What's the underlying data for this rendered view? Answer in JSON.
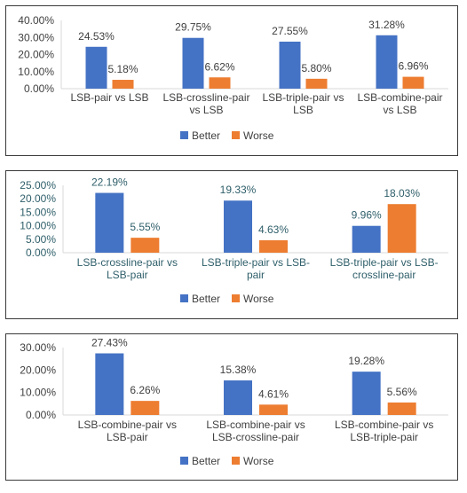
{
  "colors": {
    "better": "#4472C4",
    "worse": "#ED7D31",
    "axis": "#D9D9D9",
    "teal_text": "#2F5F6A",
    "dark_text": "#404040"
  },
  "chart_data": [
    {
      "type": "bar",
      "title": "",
      "categories": [
        [
          "LSB-pair vs LSB"
        ],
        [
          "LSB-crossline-pair",
          "vs LSB"
        ],
        [
          "LSB-triple-pair vs",
          "LSB"
        ],
        [
          "LSB-combine-pair",
          "vs LSB"
        ]
      ],
      "series": [
        {
          "name": "Better",
          "values": [
            24.53,
            29.75,
            27.55,
            31.28
          ],
          "labels": [
            "24.53%",
            "29.75%",
            "27.55%",
            "31.28%"
          ]
        },
        {
          "name": "Worse",
          "values": [
            5.18,
            6.62,
            5.8,
            6.96
          ],
          "labels": [
            "5.18%",
            "6.62%",
            "5.80%",
            "6.96%"
          ]
        }
      ],
      "ylim": [
        0,
        40
      ],
      "yticks": [
        "0.00%",
        "10.00%",
        "20.00%",
        "30.00%",
        "40.00%"
      ],
      "grid": false,
      "legend": "bottom",
      "xlabel": "",
      "ylabel": ""
    },
    {
      "type": "bar",
      "title": "",
      "categories": [
        [
          "LSB-crossline-pair vs",
          "LSB-pair"
        ],
        [
          "LSB-triple-pair vs LSB-",
          "pair"
        ],
        [
          "LSB-triple-pair vs LSB-",
          "crossline-pair"
        ]
      ],
      "series": [
        {
          "name": "Better",
          "values": [
            22.19,
            19.33,
            9.96
          ],
          "labels": [
            "22.19%",
            "19.33%",
            "9.96%"
          ]
        },
        {
          "name": "Worse",
          "values": [
            5.55,
            4.63,
            18.03
          ],
          "labels": [
            "5.55%",
            "4.63%",
            "18.03%"
          ]
        }
      ],
      "ylim": [
        0,
        25
      ],
      "yticks": [
        "0.00%",
        "5.00%",
        "10.00%",
        "15.00%",
        "20.00%",
        "25.00%"
      ],
      "grid": false,
      "legend": "bottom",
      "xlabel": "",
      "ylabel": ""
    },
    {
      "type": "bar",
      "title": "",
      "categories": [
        [
          "LSB-combine-pair vs",
          "LSB-pair"
        ],
        [
          "LSB-combine-pair vs",
          "LSB-crossline-pair"
        ],
        [
          "LSB-combine-pair vs",
          "LSB-triple-pair"
        ]
      ],
      "series": [
        {
          "name": "Better",
          "values": [
            27.43,
            15.38,
            19.28
          ],
          "labels": [
            "27.43%",
            "15.38%",
            "19.28%"
          ]
        },
        {
          "name": "Worse",
          "values": [
            6.26,
            4.61,
            5.56
          ],
          "labels": [
            "6.26%",
            "4.61%",
            "5.56%"
          ]
        }
      ],
      "ylim": [
        0,
        30
      ],
      "yticks": [
        "0.00%",
        "10.00%",
        "20.00%",
        "30.00%"
      ],
      "grid": false,
      "legend": "bottom",
      "xlabel": "",
      "ylabel": ""
    }
  ]
}
